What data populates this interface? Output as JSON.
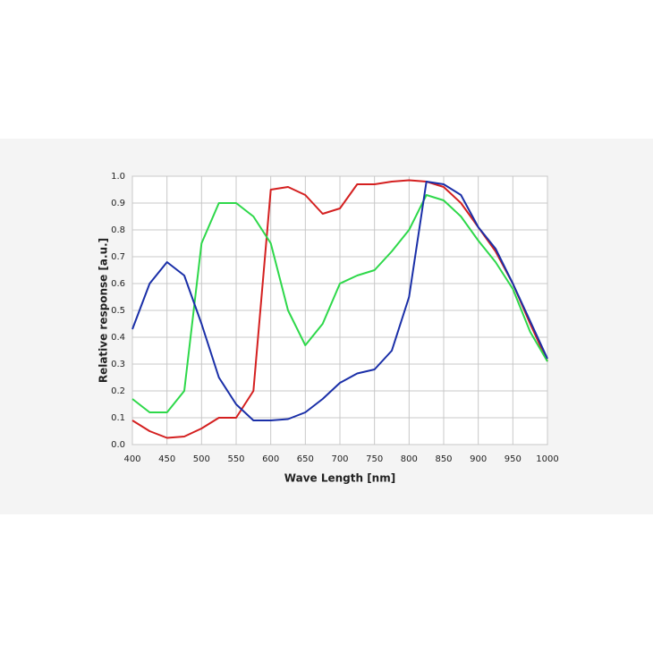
{
  "chart_data": {
    "type": "line",
    "x_label": "Wave Length [nm]",
    "y_label": "Relative response [a.u.]",
    "x": [
      400,
      425,
      450,
      475,
      500,
      525,
      550,
      575,
      600,
      625,
      650,
      675,
      700,
      725,
      750,
      775,
      800,
      825,
      850,
      875,
      900,
      925,
      950,
      975,
      1000
    ],
    "series": [
      {
        "color": "#d42020",
        "values": [
          0.09,
          0.05,
          0.025,
          0.03,
          0.06,
          0.1,
          0.1,
          0.2,
          0.95,
          0.96,
          0.93,
          0.86,
          0.88,
          0.97,
          0.97,
          0.98,
          0.985,
          0.98,
          0.96,
          0.9,
          0.81,
          0.72,
          0.6,
          0.45,
          0.31
        ]
      },
      {
        "color": "#2ed84a",
        "values": [
          0.17,
          0.12,
          0.12,
          0.2,
          0.75,
          0.9,
          0.9,
          0.85,
          0.75,
          0.5,
          0.37,
          0.45,
          0.6,
          0.63,
          0.65,
          0.72,
          0.8,
          0.93,
          0.91,
          0.85,
          0.76,
          0.68,
          0.58,
          0.42,
          0.31
        ]
      },
      {
        "color": "#1a2fa8",
        "values": [
          0.43,
          0.6,
          0.68,
          0.63,
          0.45,
          0.25,
          0.15,
          0.09,
          0.09,
          0.095,
          0.12,
          0.17,
          0.23,
          0.265,
          0.28,
          0.35,
          0.55,
          0.98,
          0.97,
          0.93,
          0.81,
          0.73,
          0.6,
          0.46,
          0.32
        ]
      }
    ],
    "xlim": [
      400,
      1000
    ],
    "xticks": [
      400,
      450,
      500,
      550,
      600,
      650,
      700,
      750,
      800,
      850,
      900,
      950,
      1000
    ],
    "ylim": [
      0,
      1
    ],
    "yticks": [
      {
        "value": 0,
        "label": "0.0"
      },
      0.1,
      0.2,
      0.3,
      0.4,
      0.5,
      0.6,
      0.7,
      0.8,
      0.9,
      {
        "value": 1,
        "label": "1.0"
      }
    ],
    "grid": true
  }
}
